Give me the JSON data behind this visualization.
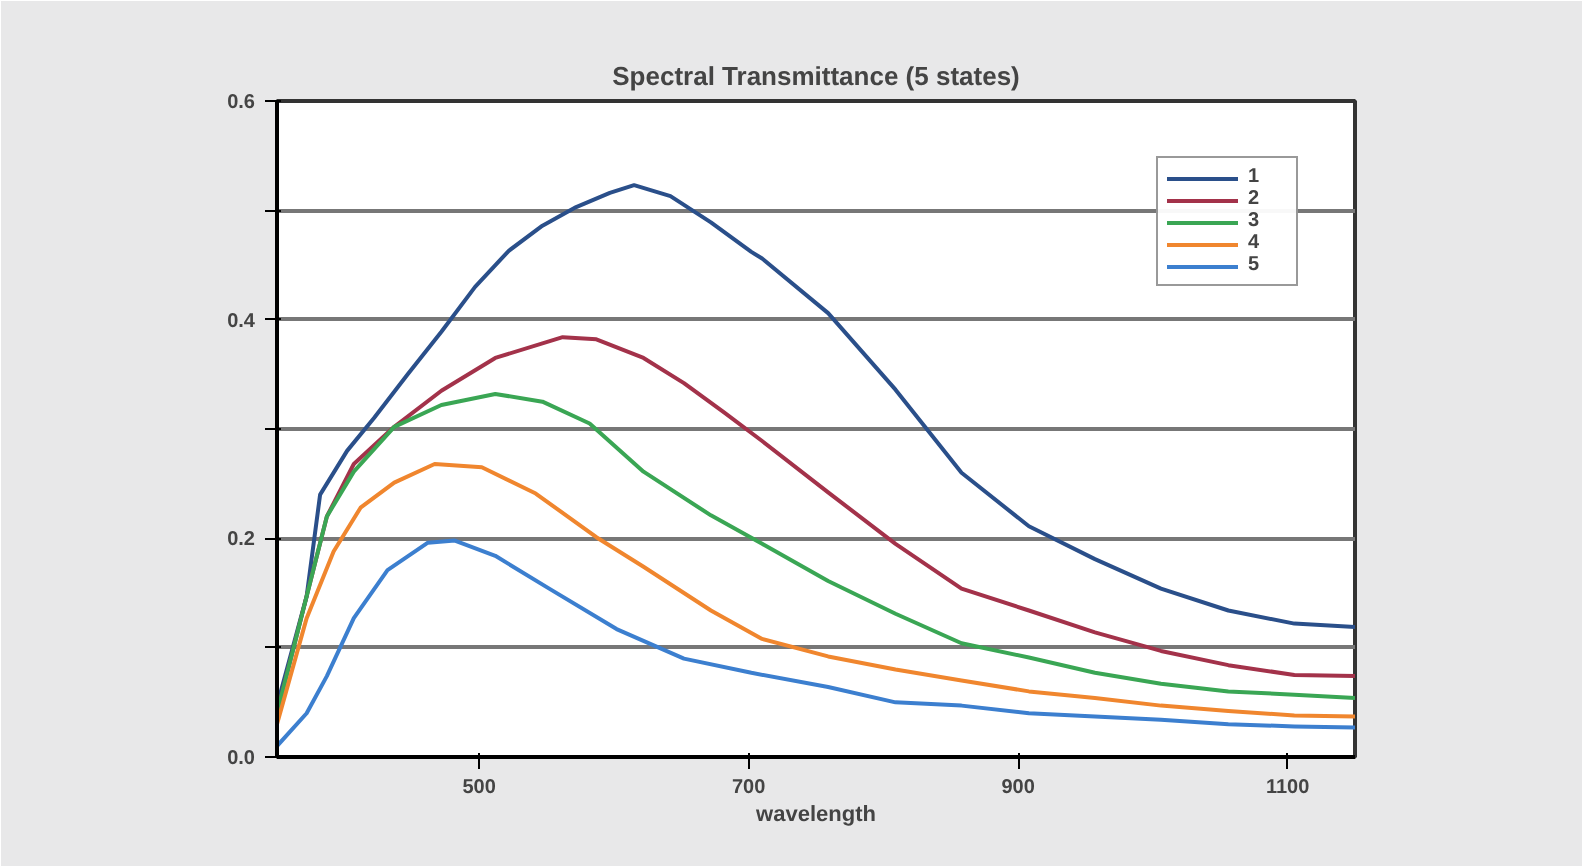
{
  "chart_data": {
    "type": "line",
    "title": "Spectral Transmittance (5 states)",
    "xlabel": "wavelength",
    "xlim": [
      350,
      1150
    ],
    "xticks": [
      500,
      700,
      900,
      1100
    ],
    "ylim": [
      0,
      0.6
    ],
    "yticks": [
      {
        "value": 0,
        "label": "0.0"
      },
      {
        "value": 0.1,
        "label": null
      },
      {
        "value": 0.2,
        "label": "0.2"
      },
      {
        "value": 0.3,
        "label": null
      },
      {
        "value": 0.4,
        "label": "0.4"
      },
      {
        "value": 0.5,
        "label": null
      },
      {
        "value": 0.6,
        "label": "0.6"
      }
    ],
    "grid": "y",
    "legend": "top right",
    "line_style": "solid",
    "series": [
      {
        "name": "1",
        "color": "#2a4f8a",
        "x": [
          350,
          372,
          382,
          402,
          422,
          447,
          472,
          497,
          522,
          547,
          572,
          597,
          615,
          642,
          672,
          702,
          710,
          759,
          809,
          858,
          908,
          957,
          1006,
          1056,
          1105,
          1150
        ],
        "values": [
          0.047,
          0.147,
          0.24,
          0.28,
          0.31,
          0.35,
          0.389,
          0.43,
          0.463,
          0.486,
          0.503,
          0.516,
          0.523,
          0.513,
          0.489,
          0.462,
          0.456,
          0.406,
          0.336,
          0.26,
          0.211,
          0.181,
          0.154,
          0.134,
          0.122,
          0.119
        ]
      },
      {
        "name": "2",
        "color": "#a3324a",
        "x": [
          350,
          372,
          387,
          407,
          437,
          472,
          512,
          562,
          587,
          622,
          652,
          682,
          710,
          759,
          809,
          858,
          908,
          957,
          1006,
          1056,
          1105,
          1150
        ],
        "values": [
          0.04,
          0.147,
          0.22,
          0.268,
          0.302,
          0.335,
          0.365,
          0.384,
          0.382,
          0.365,
          0.342,
          0.315,
          0.289,
          0.242,
          0.195,
          0.154,
          0.134,
          0.114,
          0.097,
          0.084,
          0.075,
          0.074
        ]
      },
      {
        "name": "3",
        "color": "#3aa654",
        "x": [
          350,
          372,
          387,
          407,
          437,
          472,
          512,
          547,
          582,
          622,
          672,
          710,
          759,
          809,
          858,
          908,
          957,
          1006,
          1056,
          1105,
          1150
        ],
        "values": [
          0.04,
          0.147,
          0.22,
          0.261,
          0.302,
          0.322,
          0.332,
          0.325,
          0.305,
          0.261,
          0.221,
          0.195,
          0.161,
          0.131,
          0.104,
          0.091,
          0.077,
          0.067,
          0.06,
          0.057,
          0.054
        ]
      },
      {
        "name": "4",
        "color": "#f0862e",
        "x": [
          350,
          372,
          392,
          412,
          437,
          467,
          502,
          542,
          587,
          622,
          672,
          710,
          759,
          809,
          858,
          908,
          957,
          1006,
          1056,
          1105,
          1150
        ],
        "values": [
          0.03,
          0.127,
          0.188,
          0.228,
          0.251,
          0.268,
          0.265,
          0.241,
          0.201,
          0.174,
          0.134,
          0.108,
          0.092,
          0.08,
          0.07,
          0.06,
          0.054,
          0.047,
          0.042,
          0.038,
          0.037
        ]
      },
      {
        "name": "5",
        "color": "#3c7fcf",
        "x": [
          350,
          372,
          387,
          407,
          432,
          462,
          482,
          512,
          552,
          602,
          652,
          702,
          759,
          809,
          858,
          908,
          957,
          1006,
          1056,
          1105,
          1150
        ],
        "values": [
          0.01,
          0.04,
          0.074,
          0.127,
          0.171,
          0.196,
          0.198,
          0.184,
          0.154,
          0.117,
          0.09,
          0.077,
          0.064,
          0.05,
          0.047,
          0.04,
          0.037,
          0.034,
          0.03,
          0.028,
          0.027
        ]
      }
    ]
  }
}
